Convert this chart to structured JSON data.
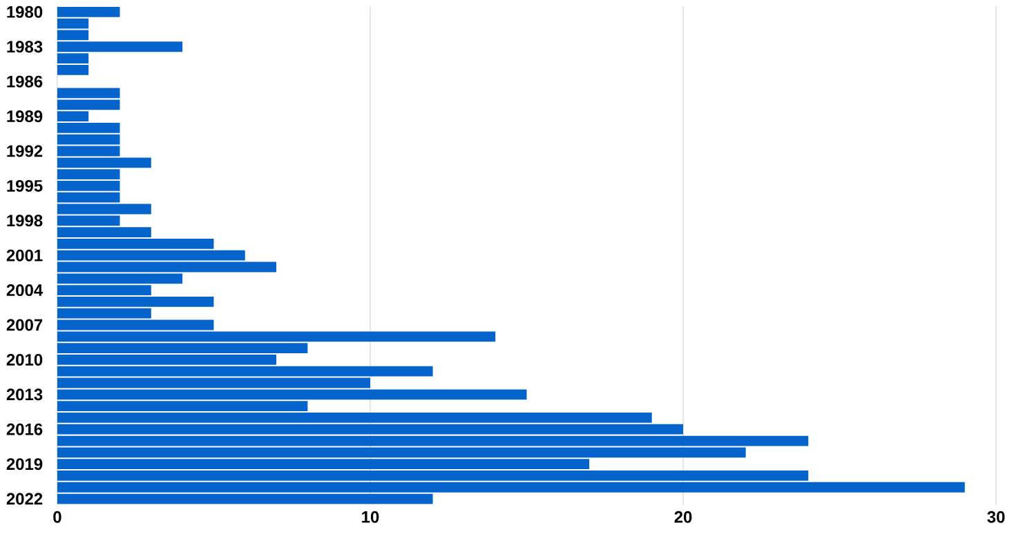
{
  "chart_data": {
    "type": "bar",
    "orientation": "horizontal",
    "categories": [
      "1980",
      null,
      null,
      "1983",
      null,
      null,
      "1986",
      null,
      null,
      "1989",
      null,
      null,
      "1992",
      null,
      null,
      "1995",
      null,
      null,
      "1998",
      null,
      null,
      "2001",
      null,
      null,
      "2004",
      null,
      null,
      "2007",
      null,
      null,
      "2010",
      null,
      null,
      "2013",
      null,
      null,
      "2016",
      null,
      null,
      "2019",
      null,
      null,
      "2022"
    ],
    "values": [
      2,
      1,
      1,
      4,
      1,
      1,
      0,
      2,
      2,
      1,
      2,
      2,
      2,
      3,
      2,
      2,
      2,
      3,
      2,
      3,
      5,
      6,
      7,
      4,
      3,
      5,
      3,
      5,
      14,
      8,
      7,
      12,
      10,
      15,
      8,
      19,
      20,
      24,
      22,
      17,
      24,
      29,
      12
    ],
    "color": "#0563cc",
    "xlim": [
      0,
      30
    ],
    "xticks": [
      0,
      10,
      20,
      30
    ],
    "grid": "x"
  }
}
